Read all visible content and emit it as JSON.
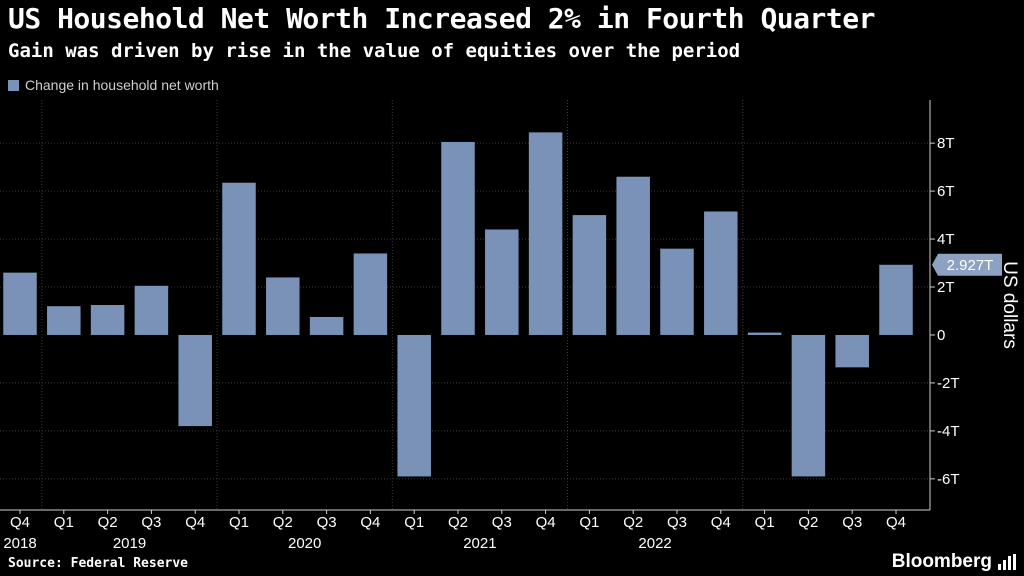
{
  "header": {
    "title": "US Household Net Worth Increased 2% in Fourth Quarter",
    "subtitle": "Gain was driven by rise in the value of equities over the period"
  },
  "footer": {
    "source": "Source: Federal Reserve",
    "brand": "Bloomberg"
  },
  "colors": {
    "bar": "#7a92b7",
    "grid": "#3a3a3a",
    "axis": "#cfcfcf"
  },
  "chart_data": {
    "type": "bar",
    "title": "US Household Net Worth Increased 2% in Fourth Quarter",
    "legend": [
      "Change in household net worth"
    ],
    "legend_position": "top-left",
    "ylabel": "US dollars",
    "ylim": [
      -7.3,
      9.8
    ],
    "yticks": [
      -6,
      -4,
      -2,
      0,
      2,
      4,
      6,
      8
    ],
    "ytick_labels": [
      "-6T",
      "-4T",
      "-2T",
      "0",
      "2T",
      "4T",
      "6T",
      "8T"
    ],
    "categories": [
      "Q4",
      "Q1",
      "Q2",
      "Q3",
      "Q4",
      "Q1",
      "Q2",
      "Q3",
      "Q4",
      "Q1",
      "Q2",
      "Q3",
      "Q4",
      "Q1",
      "Q2",
      "Q3",
      "Q4",
      "Q1",
      "Q2",
      "Q3",
      "Q4"
    ],
    "years": [
      "2018",
      "2019",
      "2020",
      "2021",
      "2022"
    ],
    "values": [
      2.6,
      1.2,
      1.25,
      2.05,
      -3.8,
      6.35,
      2.4,
      0.75,
      3.4,
      -5.9,
      8.05,
      4.4,
      8.45,
      5.0,
      6.6,
      3.6,
      5.15,
      0.1,
      -5.9,
      -1.35,
      2.927
    ],
    "annotation": {
      "label": "2.927T",
      "value": 2.927
    },
    "grid": true
  }
}
